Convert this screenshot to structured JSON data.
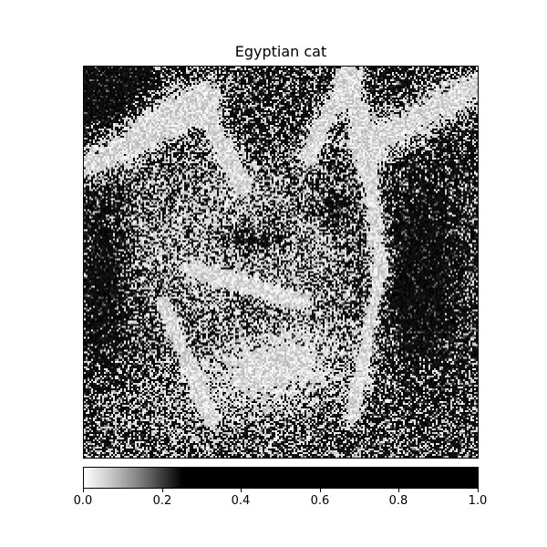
{
  "chart_data": {
    "type": "heatmap",
    "title": "Egyptian cat",
    "colormap": "gray_r (saturating near 0.25)",
    "colorbar": {
      "range": [
        0.0,
        1.0
      ],
      "orientation": "horizontal",
      "ticks": [
        "0.0",
        "0.2",
        "0.4",
        "0.6",
        "0.8",
        "1.0"
      ]
    },
    "axes_visible": false,
    "grid": false
  }
}
